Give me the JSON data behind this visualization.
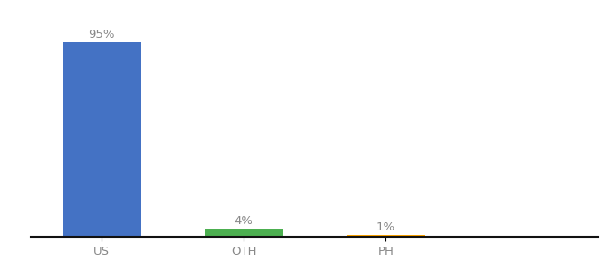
{
  "categories": [
    "US",
    "OTH",
    "PH"
  ],
  "values": [
    95,
    4,
    1
  ],
  "bar_colors": [
    "#4472c4",
    "#4caf50",
    "#ffa500"
  ],
  "labels": [
    "95%",
    "4%",
    "1%"
  ],
  "ylim": [
    0,
    105
  ],
  "background_color": "#ffffff",
  "label_fontsize": 9.5,
  "tick_fontsize": 9.5,
  "bar_width": 0.55
}
